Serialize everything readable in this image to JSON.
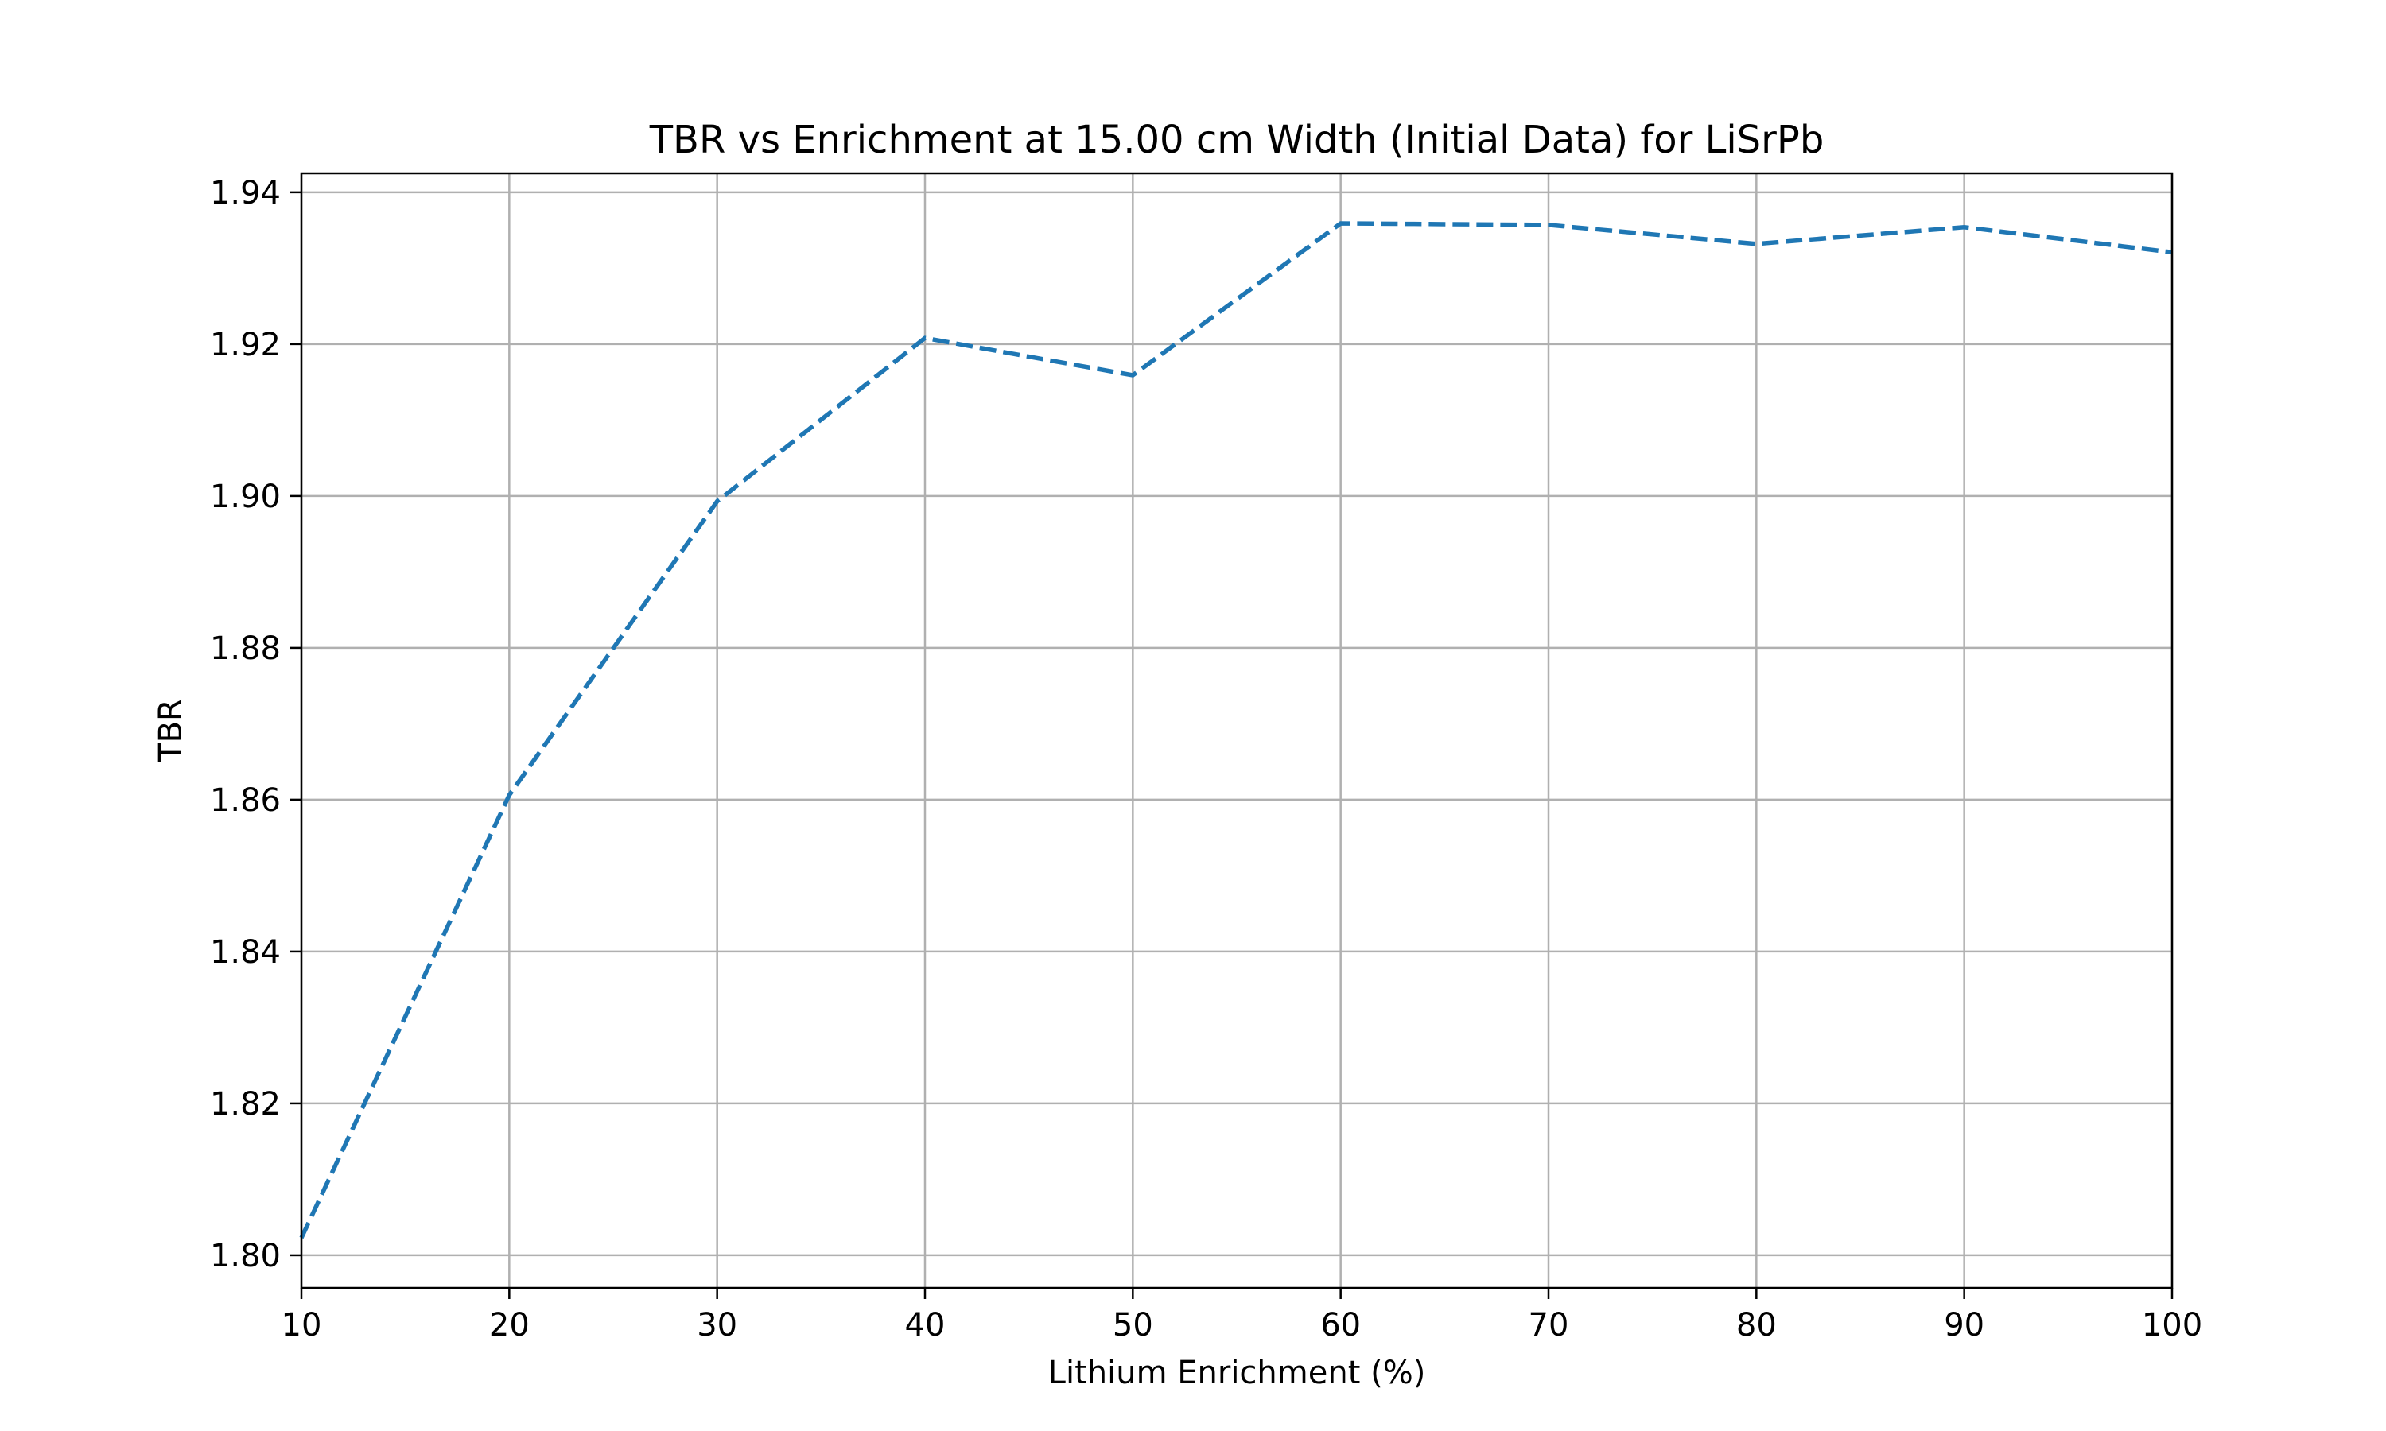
{
  "chart_data": {
    "type": "line",
    "title": "TBR vs Enrichment at 15.00 cm Width (Initial Data) for LiSrPb",
    "xlabel": "Lithium Enrichment (%)",
    "ylabel": "TBR",
    "xlim": [
      10,
      100
    ],
    "ylim": [
      1.7957,
      1.9425
    ],
    "x_ticks": [
      10,
      20,
      30,
      40,
      50,
      60,
      70,
      80,
      90,
      100
    ],
    "x_tick_labels": [
      "10",
      "20",
      "30",
      "40",
      "50",
      "60",
      "70",
      "80",
      "90",
      "100"
    ],
    "y_ticks": [
      1.8,
      1.82,
      1.84,
      1.86,
      1.88,
      1.9,
      1.92,
      1.94
    ],
    "y_tick_labels": [
      "1.80",
      "1.82",
      "1.84",
      "1.86",
      "1.88",
      "1.90",
      "1.92",
      "1.94"
    ],
    "grid": true,
    "series": [
      {
        "color": "#1f77b4",
        "line_style": "dashed",
        "x": [
          10,
          20,
          30,
          40,
          50,
          60,
          70,
          80,
          90,
          100
        ],
        "y": [
          1.8023,
          1.8606,
          1.8993,
          1.9208,
          1.9159,
          1.9359,
          1.9357,
          1.9332,
          1.9354,
          1.9321
        ]
      }
    ]
  }
}
